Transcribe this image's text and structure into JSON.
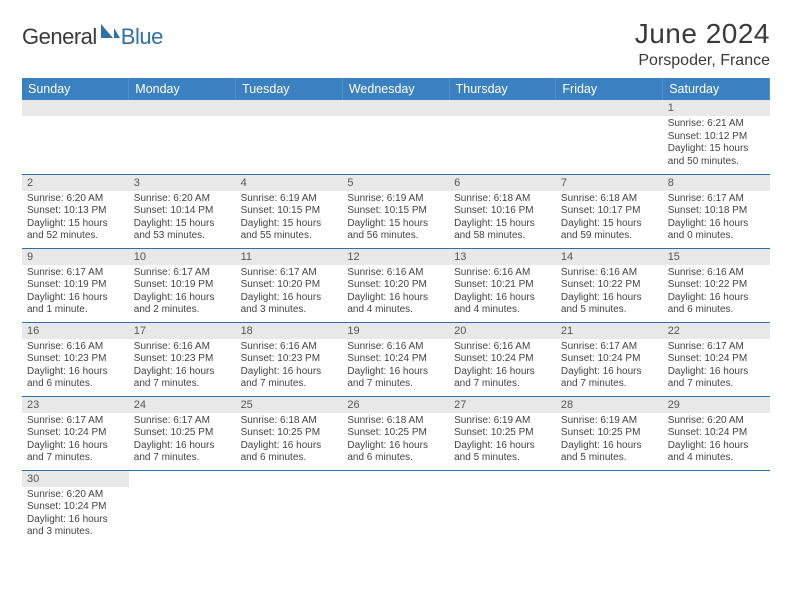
{
  "logo": {
    "part1": "General",
    "part2": "Blue"
  },
  "title": "June 2024",
  "location": "Porspoder, France",
  "colors": {
    "header_bg": "#3b81c2",
    "header_text": "#ffffff",
    "daynum_bg": "#e8e8e8",
    "border": "#2f6fab",
    "text": "#424242"
  },
  "day_headers": [
    "Sunday",
    "Monday",
    "Tuesday",
    "Wednesday",
    "Thursday",
    "Friday",
    "Saturday"
  ],
  "weeks": [
    [
      null,
      null,
      null,
      null,
      null,
      null,
      {
        "n": "1",
        "sunrise": "6:21 AM",
        "sunset": "10:12 PM",
        "daylight": "15 hours and 50 minutes."
      }
    ],
    [
      {
        "n": "2",
        "sunrise": "6:20 AM",
        "sunset": "10:13 PM",
        "daylight": "15 hours and 52 minutes."
      },
      {
        "n": "3",
        "sunrise": "6:20 AM",
        "sunset": "10:14 PM",
        "daylight": "15 hours and 53 minutes."
      },
      {
        "n": "4",
        "sunrise": "6:19 AM",
        "sunset": "10:15 PM",
        "daylight": "15 hours and 55 minutes."
      },
      {
        "n": "5",
        "sunrise": "6:19 AM",
        "sunset": "10:15 PM",
        "daylight": "15 hours and 56 minutes."
      },
      {
        "n": "6",
        "sunrise": "6:18 AM",
        "sunset": "10:16 PM",
        "daylight": "15 hours and 58 minutes."
      },
      {
        "n": "7",
        "sunrise": "6:18 AM",
        "sunset": "10:17 PM",
        "daylight": "15 hours and 59 minutes."
      },
      {
        "n": "8",
        "sunrise": "6:17 AM",
        "sunset": "10:18 PM",
        "daylight": "16 hours and 0 minutes."
      }
    ],
    [
      {
        "n": "9",
        "sunrise": "6:17 AM",
        "sunset": "10:19 PM",
        "daylight": "16 hours and 1 minute."
      },
      {
        "n": "10",
        "sunrise": "6:17 AM",
        "sunset": "10:19 PM",
        "daylight": "16 hours and 2 minutes."
      },
      {
        "n": "11",
        "sunrise": "6:17 AM",
        "sunset": "10:20 PM",
        "daylight": "16 hours and 3 minutes."
      },
      {
        "n": "12",
        "sunrise": "6:16 AM",
        "sunset": "10:20 PM",
        "daylight": "16 hours and 4 minutes."
      },
      {
        "n": "13",
        "sunrise": "6:16 AM",
        "sunset": "10:21 PM",
        "daylight": "16 hours and 4 minutes."
      },
      {
        "n": "14",
        "sunrise": "6:16 AM",
        "sunset": "10:22 PM",
        "daylight": "16 hours and 5 minutes."
      },
      {
        "n": "15",
        "sunrise": "6:16 AM",
        "sunset": "10:22 PM",
        "daylight": "16 hours and 6 minutes."
      }
    ],
    [
      {
        "n": "16",
        "sunrise": "6:16 AM",
        "sunset": "10:23 PM",
        "daylight": "16 hours and 6 minutes."
      },
      {
        "n": "17",
        "sunrise": "6:16 AM",
        "sunset": "10:23 PM",
        "daylight": "16 hours and 7 minutes."
      },
      {
        "n": "18",
        "sunrise": "6:16 AM",
        "sunset": "10:23 PM",
        "daylight": "16 hours and 7 minutes."
      },
      {
        "n": "19",
        "sunrise": "6:16 AM",
        "sunset": "10:24 PM",
        "daylight": "16 hours and 7 minutes."
      },
      {
        "n": "20",
        "sunrise": "6:16 AM",
        "sunset": "10:24 PM",
        "daylight": "16 hours and 7 minutes."
      },
      {
        "n": "21",
        "sunrise": "6:17 AM",
        "sunset": "10:24 PM",
        "daylight": "16 hours and 7 minutes."
      },
      {
        "n": "22",
        "sunrise": "6:17 AM",
        "sunset": "10:24 PM",
        "daylight": "16 hours and 7 minutes."
      }
    ],
    [
      {
        "n": "23",
        "sunrise": "6:17 AM",
        "sunset": "10:24 PM",
        "daylight": "16 hours and 7 minutes."
      },
      {
        "n": "24",
        "sunrise": "6:17 AM",
        "sunset": "10:25 PM",
        "daylight": "16 hours and 7 minutes."
      },
      {
        "n": "25",
        "sunrise": "6:18 AM",
        "sunset": "10:25 PM",
        "daylight": "16 hours and 6 minutes."
      },
      {
        "n": "26",
        "sunrise": "6:18 AM",
        "sunset": "10:25 PM",
        "daylight": "16 hours and 6 minutes."
      },
      {
        "n": "27",
        "sunrise": "6:19 AM",
        "sunset": "10:25 PM",
        "daylight": "16 hours and 5 minutes."
      },
      {
        "n": "28",
        "sunrise": "6:19 AM",
        "sunset": "10:25 PM",
        "daylight": "16 hours and 5 minutes."
      },
      {
        "n": "29",
        "sunrise": "6:20 AM",
        "sunset": "10:24 PM",
        "daylight": "16 hours and 4 minutes."
      }
    ],
    [
      {
        "n": "30",
        "sunrise": "6:20 AM",
        "sunset": "10:24 PM",
        "daylight": "16 hours and 3 minutes."
      },
      null,
      null,
      null,
      null,
      null,
      null
    ]
  ],
  "labels": {
    "sunrise": "Sunrise:",
    "sunset": "Sunset:",
    "daylight": "Daylight:"
  }
}
